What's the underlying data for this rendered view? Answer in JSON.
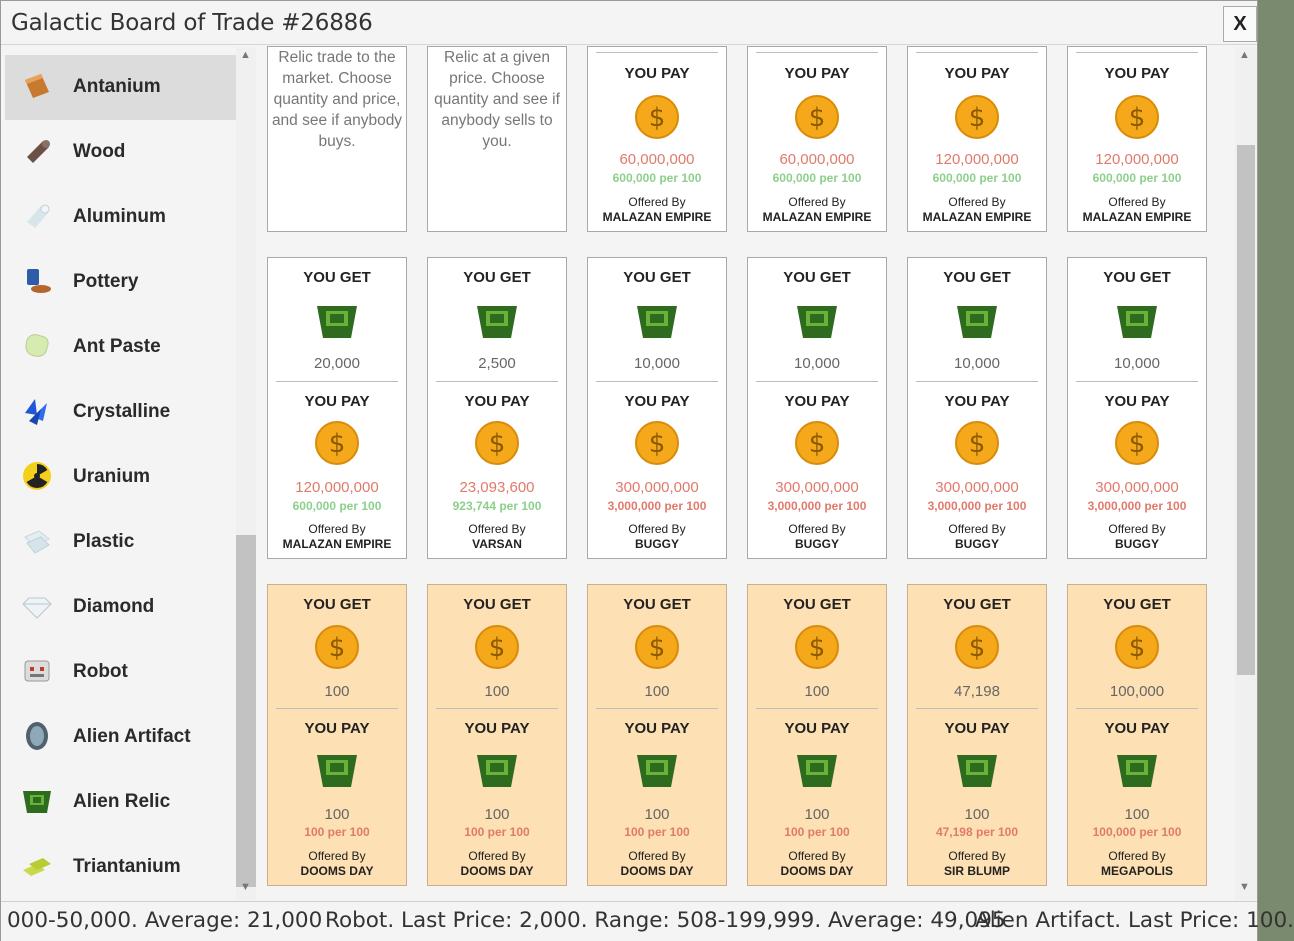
{
  "window": {
    "title": "Galactic Board of Trade #26886",
    "close_label": "X"
  },
  "sidebar": {
    "items": [
      {
        "label": "Antanium",
        "icon": "antanium-bar-icon",
        "selected": true
      },
      {
        "label": "Wood",
        "icon": "wood-log-icon"
      },
      {
        "label": "Aluminum",
        "icon": "aluminum-cylinder-icon"
      },
      {
        "label": "Pottery",
        "icon": "pottery-icon"
      },
      {
        "label": "Ant Paste",
        "icon": "ant-paste-icon"
      },
      {
        "label": "Crystalline",
        "icon": "crystalline-icon"
      },
      {
        "label": "Uranium",
        "icon": "radiation-icon"
      },
      {
        "label": "Plastic",
        "icon": "plastic-icon"
      },
      {
        "label": "Diamond",
        "icon": "diamond-icon"
      },
      {
        "label": "Robot",
        "icon": "robot-icon"
      },
      {
        "label": "Alien Artifact",
        "icon": "alien-artifact-icon"
      },
      {
        "label": "Alien Relic",
        "icon": "alien-relic-icon"
      },
      {
        "label": "Triantanium",
        "icon": "triantanium-bars-icon"
      }
    ]
  },
  "cards": {
    "row0": [
      {
        "desc": [
          "Relic trade to the",
          "market. Choose",
          "quantity and price,",
          "and see if anybody",
          "buys."
        ]
      },
      {
        "desc": [
          "Relic at a given",
          "price. Choose",
          "quantity and see if",
          "anybody sells to",
          "you."
        ]
      },
      {
        "pay_label": "YOU PAY",
        "price": "60,000,000",
        "per": "600,000 per 100",
        "offered_label": "Offered By",
        "offered_by": "MALAZAN EMPIRE"
      },
      {
        "pay_label": "YOU PAY",
        "price": "60,000,000",
        "per": "600,000 per 100",
        "offered_label": "Offered By",
        "offered_by": "MALAZAN EMPIRE"
      },
      {
        "pay_label": "YOU PAY",
        "price": "120,000,000",
        "per": "600,000 per 100",
        "offered_label": "Offered By",
        "offered_by": "MALAZAN EMPIRE"
      },
      {
        "pay_label": "YOU PAY",
        "price": "120,000,000",
        "per": "600,000 per 100",
        "offered_label": "Offered By",
        "offered_by": "MALAZAN EMPIRE"
      }
    ],
    "row1": [
      {
        "get_label": "YOU GET",
        "get_qty": "20,000",
        "pay_label": "YOU PAY",
        "price": "120,000,000",
        "per": "600,000 per 100",
        "per_status": "good",
        "offered_label": "Offered By",
        "offered_by": "MALAZAN EMPIRE"
      },
      {
        "get_label": "YOU GET",
        "get_qty": "2,500",
        "pay_label": "YOU PAY",
        "price": "23,093,600",
        "per": "923,744 per 100",
        "per_status": "good",
        "offered_label": "Offered By",
        "offered_by": "VARSAN"
      },
      {
        "get_label": "YOU GET",
        "get_qty": "10,000",
        "pay_label": "YOU PAY",
        "price": "300,000,000",
        "per": "3,000,000 per 100",
        "per_status": "bad",
        "offered_label": "Offered By",
        "offered_by": "BUGGY"
      },
      {
        "get_label": "YOU GET",
        "get_qty": "10,000",
        "pay_label": "YOU PAY",
        "price": "300,000,000",
        "per": "3,000,000 per 100",
        "per_status": "bad",
        "offered_label": "Offered By",
        "offered_by": "BUGGY"
      },
      {
        "get_label": "YOU GET",
        "get_qty": "10,000",
        "pay_label": "YOU PAY",
        "price": "300,000,000",
        "per": "3,000,000 per 100",
        "per_status": "bad",
        "offered_label": "Offered By",
        "offered_by": "BUGGY"
      },
      {
        "get_label": "YOU GET",
        "get_qty": "10,000",
        "pay_label": "YOU PAY",
        "price": "300,000,000",
        "per": "3,000,000 per 100",
        "per_status": "bad",
        "offered_label": "Offered By",
        "offered_by": "BUGGY"
      }
    ],
    "row2": [
      {
        "get_label": "YOU GET",
        "get_qty": "100",
        "pay_label": "YOU PAY",
        "pay_qty": "100",
        "per": "100 per 100",
        "offered_label": "Offered By",
        "offered_by": "DOOMS DAY"
      },
      {
        "get_label": "YOU GET",
        "get_qty": "100",
        "pay_label": "YOU PAY",
        "pay_qty": "100",
        "per": "100 per 100",
        "offered_label": "Offered By",
        "offered_by": "DOOMS DAY"
      },
      {
        "get_label": "YOU GET",
        "get_qty": "100",
        "pay_label": "YOU PAY",
        "pay_qty": "100",
        "per": "100 per 100",
        "offered_label": "Offered By",
        "offered_by": "DOOMS DAY"
      },
      {
        "get_label": "YOU GET",
        "get_qty": "100",
        "pay_label": "YOU PAY",
        "pay_qty": "100",
        "per": "100 per 100",
        "offered_label": "Offered By",
        "offered_by": "DOOMS DAY"
      },
      {
        "get_label": "YOU GET",
        "get_qty": "47,198",
        "pay_label": "YOU PAY",
        "pay_qty": "100",
        "per": "47,198 per 100",
        "offered_label": "Offered By",
        "offered_by": "SIR BLUMP"
      },
      {
        "get_label": "YOU GET",
        "get_qty": "100,000",
        "pay_label": "YOU PAY",
        "pay_qty": "100",
        "per": "100,000 per 100",
        "offered_label": "Offered By",
        "offered_by": "MEGAPOLIS"
      }
    ]
  },
  "ticker": {
    "segments": [
      "000-50,000. Average: 21,000",
      "Robot. Last Price: 2,000. Range: 508-199,999. Average: 49,095",
      "Alien Artifact. Last Price: 100."
    ]
  },
  "colors": {
    "sell_card": "#fde0b3",
    "price_red": "#e07a6a",
    "per_green": "#8cd08c",
    "coin": "#f4a81a",
    "relic": "#2e6b1e"
  }
}
